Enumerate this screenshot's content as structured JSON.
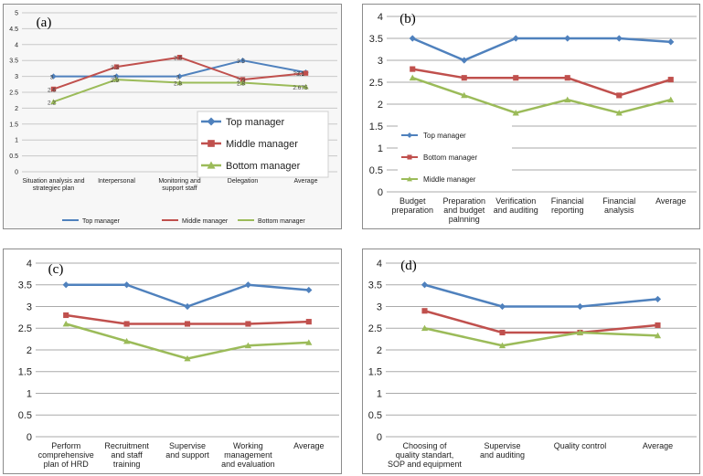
{
  "chart_data": [
    {
      "panel_label": "(a)",
      "type": "line",
      "categories": [
        [
          "Situation analysis and",
          "strategiec plan"
        ],
        [
          "Interpersonal"
        ],
        [
          "Monitoring and",
          "support staff"
        ],
        [
          "Delegation"
        ],
        [
          "Average"
        ]
      ],
      "ylim": [
        0,
        5
      ],
      "yticks": [
        "0",
        "0.5",
        "1",
        "1.5",
        "2",
        "2.5",
        "3",
        "3.5",
        "4",
        "4.5",
        "5"
      ],
      "grid": true,
      "series": [
        {
          "name": "Top manager",
          "color": "#4f81bd",
          "marker": "diamond",
          "values": [
            3,
            3,
            3,
            3.5,
            3.125
          ],
          "labels": [
            "3",
            "3",
            "3",
            "3.5",
            "3.125"
          ]
        },
        {
          "name": "Middle manager",
          "color": "#c0504d",
          "marker": "square",
          "values": [
            2.6,
            3.3,
            3.6,
            2.9,
            3.1
          ],
          "labels": [
            "2.6",
            "3.3",
            "3.6",
            "2.9",
            "3.1"
          ]
        },
        {
          "name": "Bottom manager",
          "color": "#9bbb59",
          "marker": "triangle",
          "values": [
            2.2,
            2.9,
            2.8,
            2.8,
            2.675
          ],
          "labels": [
            "2.2",
            "2.9",
            "2.8",
            "2.8",
            "2.675"
          ]
        }
      ],
      "legend": {
        "position": "inside-right",
        "items": [
          "Top manager",
          "Middle manager",
          "Bottom manager"
        ]
      },
      "legend_bottom": {
        "position": "bottom",
        "items": [
          "Top manager",
          "Middle manager",
          "Bottom manager"
        ]
      }
    },
    {
      "panel_label": "(b)",
      "type": "line",
      "categories": [
        [
          "Budget",
          "preparation"
        ],
        [
          "Preparation",
          "and budget",
          "palnning"
        ],
        [
          "Verification",
          "and auditing"
        ],
        [
          "Financial",
          "reporting"
        ],
        [
          "Financial",
          "analysis"
        ],
        [
          "Average"
        ]
      ],
      "ylim": [
        0,
        4
      ],
      "yticks": [
        "0",
        "0.5",
        "1",
        "1.5",
        "2",
        "2.5",
        "3",
        "3.5",
        "4"
      ],
      "grid": true,
      "series": [
        {
          "name": "Top manager",
          "color": "#4f81bd",
          "marker": "diamond",
          "values": [
            3.5,
            3,
            3.5,
            3.5,
            3.5,
            3.42
          ]
        },
        {
          "name": "Bottom manager",
          "color": "#c0504d",
          "marker": "square",
          "values": [
            2.8,
            2.6,
            2.6,
            2.6,
            2.2,
            2.56
          ]
        },
        {
          "name": "Middle manager",
          "color": "#9bbb59",
          "marker": "triangle",
          "values": [
            2.6,
            2.2,
            1.8,
            2.1,
            1.8,
            2.1
          ]
        }
      ],
      "legend": {
        "position": "bottom-left",
        "items": [
          "Top manager",
          "Bottom manager",
          "Middle manager"
        ]
      }
    },
    {
      "panel_label": "(c)",
      "type": "line",
      "categories": [
        [
          "Perform",
          "comprehensive",
          "plan of HRD"
        ],
        [
          "Recruitment",
          "and staff",
          "training"
        ],
        [
          "Supervise",
          "and support"
        ],
        [
          "Working",
          "management",
          "and evaluation"
        ],
        [
          "Average"
        ]
      ],
      "ylim": [
        0,
        4
      ],
      "yticks": [
        "0",
        "0.5",
        "1",
        "1.5",
        "2",
        "2.5",
        "3",
        "3.5",
        "4"
      ],
      "grid": true,
      "series": [
        {
          "name": "",
          "color": "#4f81bd",
          "marker": "diamond",
          "values": [
            3.5,
            3.5,
            3,
            3.5,
            3.38
          ]
        },
        {
          "name": "",
          "color": "#c0504d",
          "marker": "square",
          "values": [
            2.8,
            2.6,
            2.6,
            2.6,
            2.65
          ]
        },
        {
          "name": "",
          "color": "#9bbb59",
          "marker": "triangle",
          "values": [
            2.6,
            2.2,
            1.8,
            2.1,
            2.17
          ]
        }
      ]
    },
    {
      "panel_label": "(d)",
      "type": "line",
      "categories": [
        [
          "Choosing of",
          "quality standart,",
          "SOP and equipment"
        ],
        [
          "Supervise",
          "and auditing"
        ],
        [
          "Quality control"
        ],
        [
          "Average"
        ]
      ],
      "ylim": [
        0,
        4
      ],
      "yticks": [
        "0",
        "0.5",
        "1",
        "1.5",
        "2",
        "2.5",
        "3",
        "3.5",
        "4"
      ],
      "grid": true,
      "series": [
        {
          "name": "",
          "color": "#4f81bd",
          "marker": "diamond",
          "values": [
            3.5,
            3,
            3,
            3.17
          ]
        },
        {
          "name": "",
          "color": "#c0504d",
          "marker": "square",
          "values": [
            2.9,
            2.4,
            2.4,
            2.57
          ]
        },
        {
          "name": "",
          "color": "#9bbb59",
          "marker": "triangle",
          "values": [
            2.5,
            2.1,
            2.4,
            2.33
          ]
        }
      ]
    }
  ]
}
